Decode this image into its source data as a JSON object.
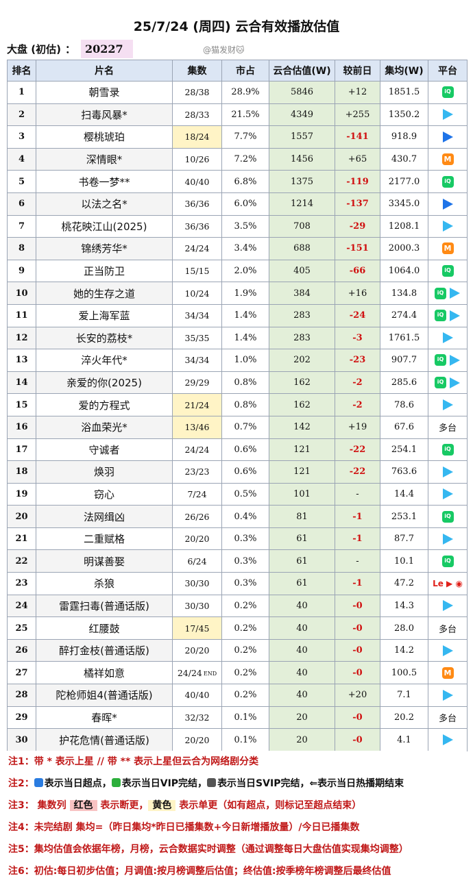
{
  "title": "25/7/24 (周四) 云合有效播放估值",
  "summary": {
    "label": "大盘 (初估)",
    "colon": "：",
    "value": "20227"
  },
  "credit": "@猫发财🐱",
  "columns": [
    "排名",
    "片名",
    "集数",
    "市占",
    "云合估值(W)",
    "较前日",
    "集均(W)",
    "平台"
  ],
  "rows": [
    {
      "rank": "1",
      "name": "朝雪录",
      "eps": "28/38",
      "share": "28.9%",
      "est": "5846",
      "chg": "+12",
      "avg": "1851.5",
      "plat": [
        "iqiyi"
      ],
      "plat_text": "",
      "eps_highlight": "",
      "neg": false,
      "end": false
    },
    {
      "rank": "2",
      "name": "扫毒风暴*",
      "eps": "28/33",
      "share": "21.5%",
      "est": "4349",
      "chg": "+255",
      "avg": "1350.2",
      "plat": [
        "tencent"
      ],
      "plat_text": "",
      "eps_highlight": "",
      "neg": false,
      "end": false
    },
    {
      "rank": "3",
      "name": "樱桃琥珀",
      "eps": "18/24",
      "share": "7.7%",
      "est": "1557",
      "chg": "-141",
      "avg": "918.9",
      "plat": [
        "youku"
      ],
      "plat_text": "",
      "eps_highlight": "yellow",
      "neg": true,
      "end": false
    },
    {
      "rank": "4",
      "name": "深情眼*",
      "eps": "10/26",
      "share": "7.2%",
      "est": "1456",
      "chg": "+65",
      "avg": "430.7",
      "plat": [
        "mango"
      ],
      "plat_text": "",
      "eps_highlight": "",
      "neg": false,
      "end": false
    },
    {
      "rank": "5",
      "name": "书卷一梦**",
      "eps": "40/40",
      "share": "6.8%",
      "est": "1375",
      "chg": "-119",
      "avg": "2177.0",
      "plat": [
        "iqiyi"
      ],
      "plat_text": "",
      "eps_highlight": "",
      "neg": true,
      "end": false
    },
    {
      "rank": "6",
      "name": "以法之名*",
      "eps": "36/36",
      "share": "6.0%",
      "est": "1214",
      "chg": "-137",
      "avg": "3345.0",
      "plat": [
        "youku"
      ],
      "plat_text": "",
      "eps_highlight": "",
      "neg": true,
      "end": false
    },
    {
      "rank": "7",
      "name": "桃花映江山(2025)",
      "eps": "36/36",
      "share": "3.5%",
      "est": "708",
      "chg": "-29",
      "avg": "1208.1",
      "plat": [
        "tencent"
      ],
      "plat_text": "",
      "eps_highlight": "",
      "neg": true,
      "end": false
    },
    {
      "rank": "8",
      "name": "锦绣芳华*",
      "eps": "24/24",
      "share": "3.4%",
      "est": "688",
      "chg": "-151",
      "avg": "2000.3",
      "plat": [
        "mango"
      ],
      "plat_text": "",
      "eps_highlight": "",
      "neg": true,
      "end": false
    },
    {
      "rank": "9",
      "name": "正当防卫",
      "eps": "15/15",
      "share": "2.0%",
      "est": "405",
      "chg": "-66",
      "avg": "1064.0",
      "plat": [
        "iqiyi"
      ],
      "plat_text": "",
      "eps_highlight": "",
      "neg": true,
      "end": false
    },
    {
      "rank": "10",
      "name": "她的生存之道",
      "eps": "10/24",
      "share": "1.9%",
      "est": "384",
      "chg": "+16",
      "avg": "134.8",
      "plat": [
        "iqiyi",
        "tencent"
      ],
      "plat_text": "",
      "eps_highlight": "",
      "neg": false,
      "end": false
    },
    {
      "rank": "11",
      "name": "爱上海军蓝",
      "eps": "34/34",
      "share": "1.4%",
      "est": "283",
      "chg": "-24",
      "avg": "274.4",
      "plat": [
        "iqiyi",
        "tencent"
      ],
      "plat_text": "",
      "eps_highlight": "",
      "neg": true,
      "end": false
    },
    {
      "rank": "12",
      "name": "长安的荔枝*",
      "eps": "35/35",
      "share": "1.4%",
      "est": "283",
      "chg": "-3",
      "avg": "1761.5",
      "plat": [
        "tencent"
      ],
      "plat_text": "",
      "eps_highlight": "",
      "neg": true,
      "end": false
    },
    {
      "rank": "13",
      "name": "淬火年代*",
      "eps": "34/34",
      "share": "1.0%",
      "est": "202",
      "chg": "-23",
      "avg": "907.7",
      "plat": [
        "iqiyi",
        "tencent"
      ],
      "plat_text": "",
      "eps_highlight": "",
      "neg": true,
      "end": false
    },
    {
      "rank": "14",
      "name": "亲爱的你(2025)",
      "eps": "29/29",
      "share": "0.8%",
      "est": "162",
      "chg": "-2",
      "avg": "285.6",
      "plat": [
        "iqiyi",
        "tencent"
      ],
      "plat_text": "",
      "eps_highlight": "",
      "neg": true,
      "end": false
    },
    {
      "rank": "15",
      "name": "爱的方程式",
      "eps": "21/24",
      "share": "0.8%",
      "est": "162",
      "chg": "-2",
      "avg": "78.6",
      "plat": [
        "tencent"
      ],
      "plat_text": "",
      "eps_highlight": "yellow",
      "neg": true,
      "end": false
    },
    {
      "rank": "16",
      "name": "浴血荣光*",
      "eps": "13/46",
      "share": "0.7%",
      "est": "142",
      "chg": "+19",
      "avg": "67.6",
      "plat": [],
      "plat_text": "多台",
      "eps_highlight": "yellow",
      "neg": false,
      "end": false
    },
    {
      "rank": "17",
      "name": "守诚者",
      "eps": "24/24",
      "share": "0.6%",
      "est": "121",
      "chg": "-22",
      "avg": "254.1",
      "plat": [
        "iqiyi"
      ],
      "plat_text": "",
      "eps_highlight": "",
      "neg": true,
      "end": false
    },
    {
      "rank": "18",
      "name": "焕羽",
      "eps": "23/23",
      "share": "0.6%",
      "est": "121",
      "chg": "-22",
      "avg": "763.6",
      "plat": [
        "tencent"
      ],
      "plat_text": "",
      "eps_highlight": "",
      "neg": true,
      "end": false
    },
    {
      "rank": "19",
      "name": "窃心",
      "eps": "7/24",
      "share": "0.5%",
      "est": "101",
      "chg": "-",
      "avg": "14.4",
      "plat": [
        "tencent"
      ],
      "plat_text": "",
      "eps_highlight": "",
      "neg": false,
      "end": false
    },
    {
      "rank": "20",
      "name": "法网缉凶",
      "eps": "26/26",
      "share": "0.4%",
      "est": "81",
      "chg": "-1",
      "avg": "253.1",
      "plat": [
        "iqiyi"
      ],
      "plat_text": "",
      "eps_highlight": "",
      "neg": true,
      "end": false
    },
    {
      "rank": "21",
      "name": "二重赋格",
      "eps": "20/20",
      "share": "0.3%",
      "est": "61",
      "chg": "-1",
      "avg": "87.7",
      "plat": [
        "tencent"
      ],
      "plat_text": "",
      "eps_highlight": "",
      "neg": true,
      "end": false
    },
    {
      "rank": "22",
      "name": "明谋善娶",
      "eps": "6/24",
      "share": "0.3%",
      "est": "61",
      "chg": "-",
      "avg": "10.1",
      "plat": [
        "iqiyi"
      ],
      "plat_text": "",
      "eps_highlight": "",
      "neg": false,
      "end": false
    },
    {
      "rank": "23",
      "name": "杀狼",
      "eps": "30/30",
      "share": "0.3%",
      "est": "61",
      "chg": "-1",
      "avg": "47.2",
      "plat": [
        "letv"
      ],
      "plat_text": "",
      "eps_highlight": "",
      "neg": true,
      "end": false
    },
    {
      "rank": "24",
      "name": "雷霆扫毒(普通话版)",
      "eps": "30/30",
      "share": "0.2%",
      "est": "40",
      "chg": "-0",
      "avg": "14.3",
      "plat": [
        "tencent"
      ],
      "plat_text": "",
      "eps_highlight": "",
      "neg": true,
      "end": false
    },
    {
      "rank": "25",
      "name": "红腰鼓",
      "eps": "17/45",
      "share": "0.2%",
      "est": "40",
      "chg": "-0",
      "avg": "28.0",
      "plat": [],
      "plat_text": "多台",
      "eps_highlight": "yellow",
      "neg": true,
      "end": false
    },
    {
      "rank": "26",
      "name": "醉打金枝(普通话版)",
      "eps": "20/20",
      "share": "0.2%",
      "est": "40",
      "chg": "-0",
      "avg": "14.2",
      "plat": [
        "tencent"
      ],
      "plat_text": "",
      "eps_highlight": "",
      "neg": true,
      "end": false
    },
    {
      "rank": "27",
      "name": "橘祥如意",
      "eps": "24/24",
      "share": "0.2%",
      "est": "40",
      "chg": "-0",
      "avg": "100.5",
      "plat": [
        "mango"
      ],
      "plat_text": "",
      "eps_highlight": "",
      "neg": true,
      "end": true
    },
    {
      "rank": "28",
      "name": "陀枪师姐4(普通话版)",
      "eps": "40/40",
      "share": "0.2%",
      "est": "40",
      "chg": "+20",
      "avg": "7.1",
      "plat": [
        "tencent"
      ],
      "plat_text": "",
      "eps_highlight": "",
      "neg": false,
      "end": false
    },
    {
      "rank": "29",
      "name": "春晖*",
      "eps": "32/32",
      "share": "0.1%",
      "est": "20",
      "chg": "-0",
      "avg": "20.2",
      "plat": [],
      "plat_text": "多台",
      "eps_highlight": "",
      "neg": true,
      "end": false
    },
    {
      "rank": "30",
      "name": "护花危情(普通话版)",
      "eps": "20/20",
      "share": "0.1%",
      "est": "20",
      "chg": "-0",
      "avg": "4.1",
      "plat": [
        "tencent"
      ],
      "plat_text": "",
      "eps_highlight": "",
      "neg": true,
      "end": false
    }
  ],
  "end_mark": "END",
  "notes": {
    "n1": "注1：带 * 表示上星 // 带 ** 表示上星但云合为网络剧分类",
    "n2_prefix": "注2：",
    "n2_a": "表示当日超点，",
    "n2_b": "表示当日VIP完结，",
    "n2_c": "表示当日SVIP完结，",
    "n2_d": "⇐表示当日热播期结束",
    "n3_prefix": "注3：  集数列 ",
    "n3_red": "红色",
    "n3_mid": " 表示断更，",
    "n3_yellow": "黄色",
    "n3_suffix": " 表示单更（如有超点，则标记至超点结束）",
    "n4": "注4：未完结剧 集均=（昨日集均*昨日已播集数+今日新增播放量）/今日已播集数",
    "n5": "注5：集均估值会依据年榜，月榜，云合数据实时调整（通过调整每日大盘估值实现集均调整）",
    "n6": "注6：初估:每日初步估值；月调值:按月榜调整后估值；终估值:按季榜年榜调整后最终估值"
  },
  "colors": {
    "header_bg": "#dce6f4",
    "estimate_bg": "#e3efd9",
    "single_update": "#fff4c6",
    "negative": "#d01010",
    "note_text": "#c01818"
  }
}
